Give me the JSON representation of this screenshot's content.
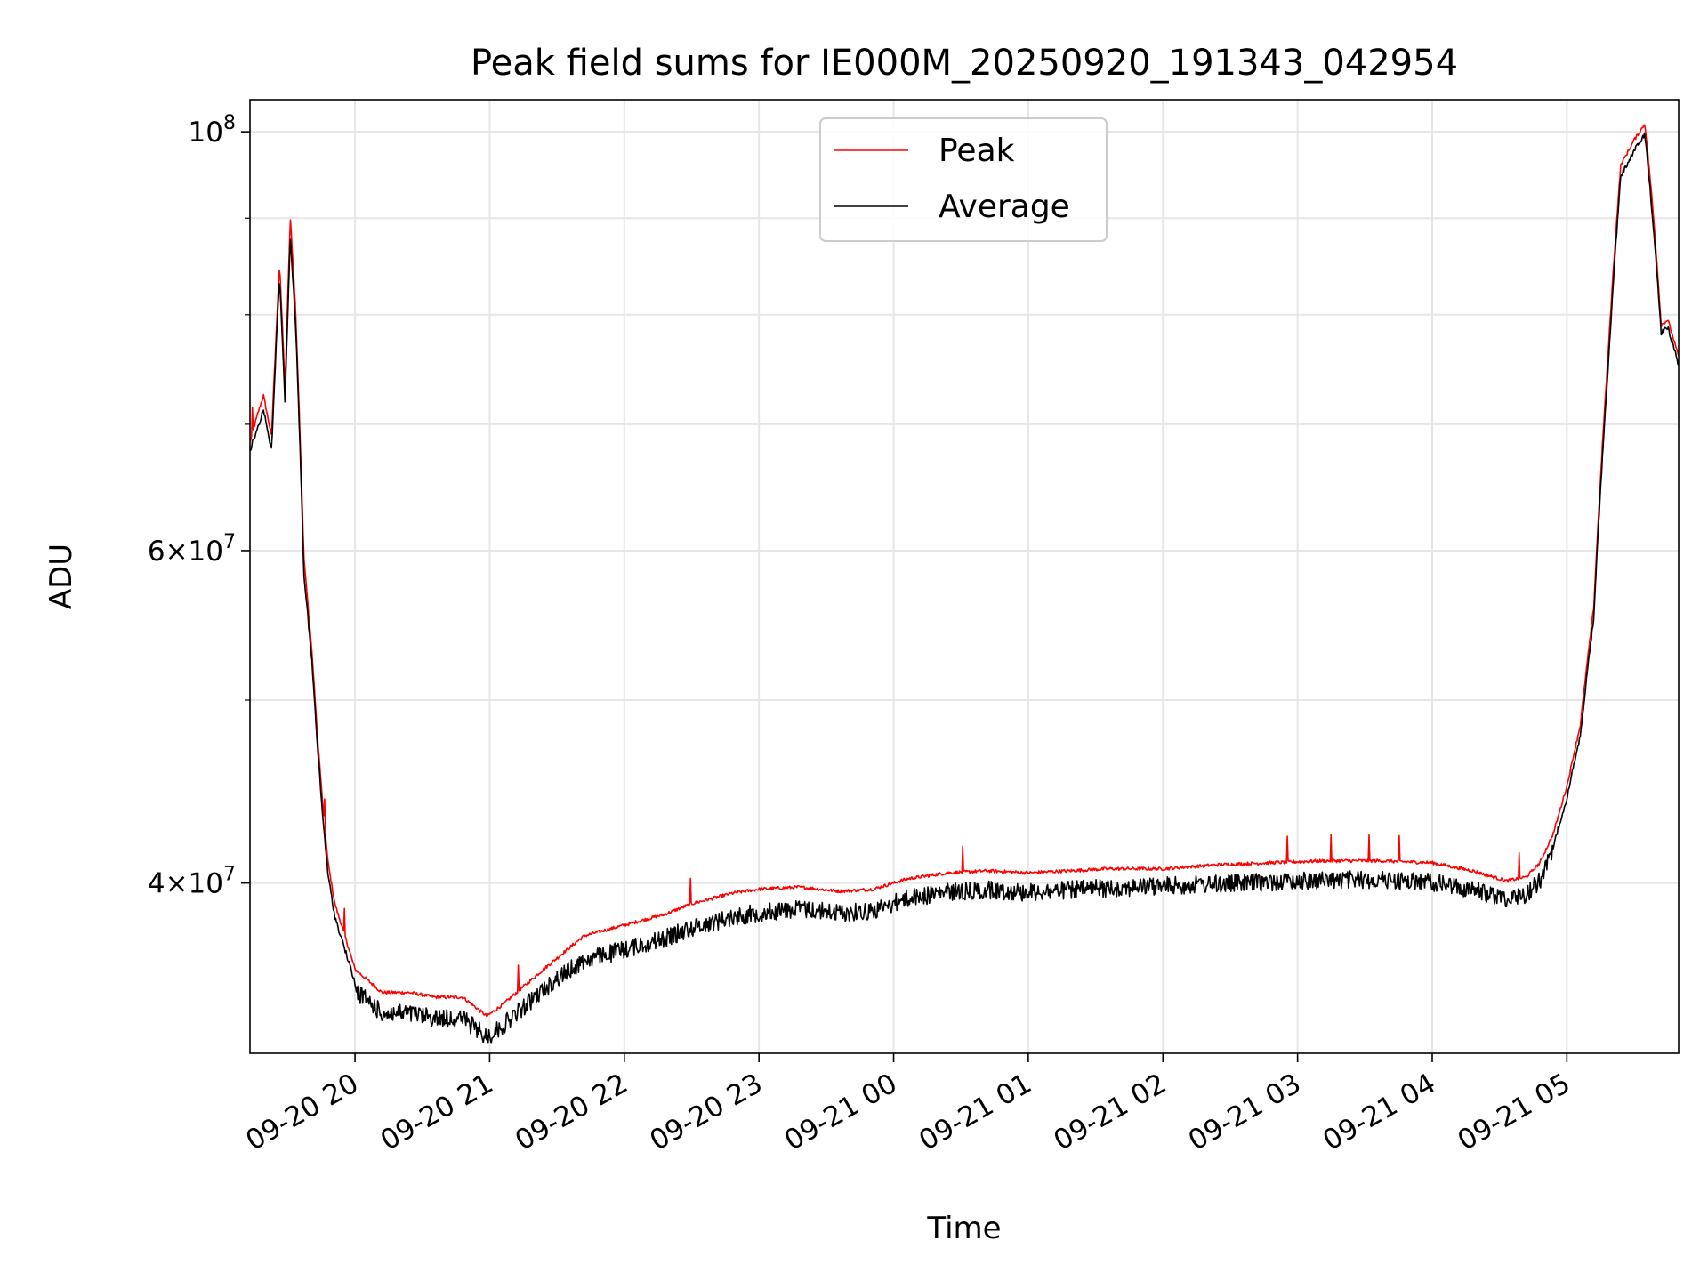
{
  "chart_data": {
    "type": "line",
    "title": "Peak field sums for IE000M_20250920_191343_042954",
    "xlabel": "Time",
    "ylabel": "ADU",
    "y_scale": "log",
    "ylim": [
      32500000,
      104000000
    ],
    "x_range_hours": [
      19.22,
      29.83
    ],
    "grid": true,
    "legend_position": "upper-center",
    "x_ticks": [
      {
        "hour": 20,
        "label": "09-20 20"
      },
      {
        "hour": 21,
        "label": "09-20 21"
      },
      {
        "hour": 22,
        "label": "09-20 22"
      },
      {
        "hour": 23,
        "label": "09-20 23"
      },
      {
        "hour": 24,
        "label": "09-21 00"
      },
      {
        "hour": 25,
        "label": "09-21 01"
      },
      {
        "hour": 26,
        "label": "09-21 02"
      },
      {
        "hour": 27,
        "label": "09-21 03"
      },
      {
        "hour": 28,
        "label": "09-21 04"
      },
      {
        "hour": 29,
        "label": "09-21 05"
      }
    ],
    "y_major_ticks": [
      {
        "value": 40000000,
        "base": "4",
        "exp": "7"
      },
      {
        "value": 60000000,
        "base": "6",
        "exp": "7"
      },
      {
        "value": 100000000,
        "base": "",
        "exp": "8"
      }
    ],
    "y_minor_ticks": [
      50000000,
      70000000,
      80000000,
      90000000
    ],
    "series": [
      {
        "name": "Peak",
        "color": "#ff0000",
        "x": [
          19.22,
          19.28,
          19.32,
          19.38,
          19.44,
          19.48,
          19.52,
          19.56,
          19.62,
          19.68,
          19.72,
          19.76,
          19.8,
          19.85,
          19.9,
          19.95,
          20.0,
          20.1,
          20.2,
          20.4,
          20.6,
          20.8,
          20.98,
          21.1,
          21.3,
          21.5,
          21.7,
          22.0,
          22.3,
          22.5,
          22.8,
          23.0,
          23.3,
          23.6,
          23.85,
          24.1,
          24.4,
          24.7,
          25.0,
          25.3,
          25.6,
          26.0,
          26.4,
          26.8,
          27.2,
          27.6,
          28.0,
          28.3,
          28.55,
          28.7,
          28.8,
          28.9,
          29.0,
          29.1,
          29.2,
          29.3,
          29.4,
          29.5,
          29.58,
          29.65,
          29.7,
          29.75,
          29.83
        ],
        "y": [
          68500000,
          71000000,
          72500000,
          69000000,
          85000000,
          73000000,
          90000000,
          80000000,
          59500000,
          53000000,
          48000000,
          44000000,
          41000000,
          39000000,
          38000000,
          37000000,
          36000000,
          35500000,
          35000000,
          35000000,
          34800000,
          34800000,
          34000000,
          34500000,
          35500000,
          36500000,
          37500000,
          38000000,
          38500000,
          39000000,
          39500000,
          39700000,
          39800000,
          39600000,
          39700000,
          40200000,
          40500000,
          40600000,
          40500000,
          40600000,
          40700000,
          40700000,
          40900000,
          41000000,
          41100000,
          41100000,
          41000000,
          40600000,
          40100000,
          40300000,
          41000000,
          42500000,
          45000000,
          48500000,
          56000000,
          75000000,
          96000000,
          99000000,
          101000000,
          89000000,
          79000000,
          79500000,
          76000000
        ]
      },
      {
        "name": "Average",
        "color": "#000000",
        "x": [
          19.22,
          19.28,
          19.32,
          19.38,
          19.44,
          19.48,
          19.52,
          19.56,
          19.62,
          19.68,
          19.72,
          19.76,
          19.8,
          19.85,
          19.9,
          19.95,
          20.0,
          20.1,
          20.2,
          20.4,
          20.6,
          20.8,
          20.98,
          21.1,
          21.3,
          21.5,
          21.7,
          22.0,
          22.3,
          22.5,
          22.8,
          23.0,
          23.3,
          23.6,
          23.85,
          24.1,
          24.4,
          24.7,
          25.0,
          25.3,
          25.6,
          26.0,
          26.4,
          26.8,
          27.2,
          27.6,
          28.0,
          28.3,
          28.55,
          28.7,
          28.8,
          28.9,
          29.0,
          29.1,
          29.2,
          29.3,
          29.4,
          29.5,
          29.58,
          29.65,
          29.7,
          29.75,
          29.83
        ],
        "y": [
          68000000,
          70000000,
          71500000,
          68000000,
          84000000,
          72000000,
          88000000,
          79000000,
          58500000,
          52500000,
          47500000,
          43500000,
          40500000,
          38500000,
          37500000,
          36500000,
          35500000,
          35000000,
          34500000,
          34500000,
          34300000,
          34300000,
          33500000,
          34000000,
          35000000,
          36000000,
          36800000,
          37300000,
          37800000,
          38300000,
          38800000,
          39000000,
          39200000,
          39000000,
          39100000,
          39700000,
          40000000,
          40100000,
          40000000,
          40100000,
          40200000,
          40300000,
          40400000,
          40500000,
          40600000,
          40600000,
          40500000,
          40100000,
          39700000,
          39900000,
          40600000,
          42000000,
          44500000,
          48000000,
          55500000,
          74000000,
          95000000,
          98000000,
          100000000,
          88000000,
          78500000,
          79000000,
          75500000
        ]
      }
    ]
  }
}
